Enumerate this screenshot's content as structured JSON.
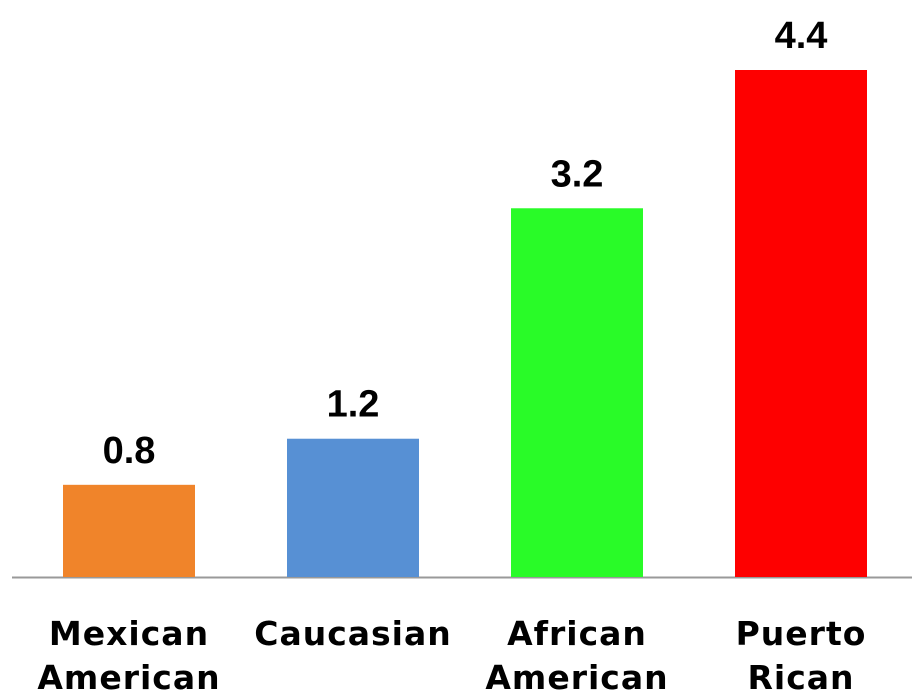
{
  "chart_data": {
    "type": "bar",
    "categories": [
      "Mexican American",
      "Caucasian",
      "African American",
      "Puerto Rican"
    ],
    "values": [
      0.8,
      1.2,
      3.2,
      4.4
    ],
    "colors": [
      "#f0842a",
      "#5790d4",
      "#29fb28",
      "#fe0000"
    ]
  }
}
